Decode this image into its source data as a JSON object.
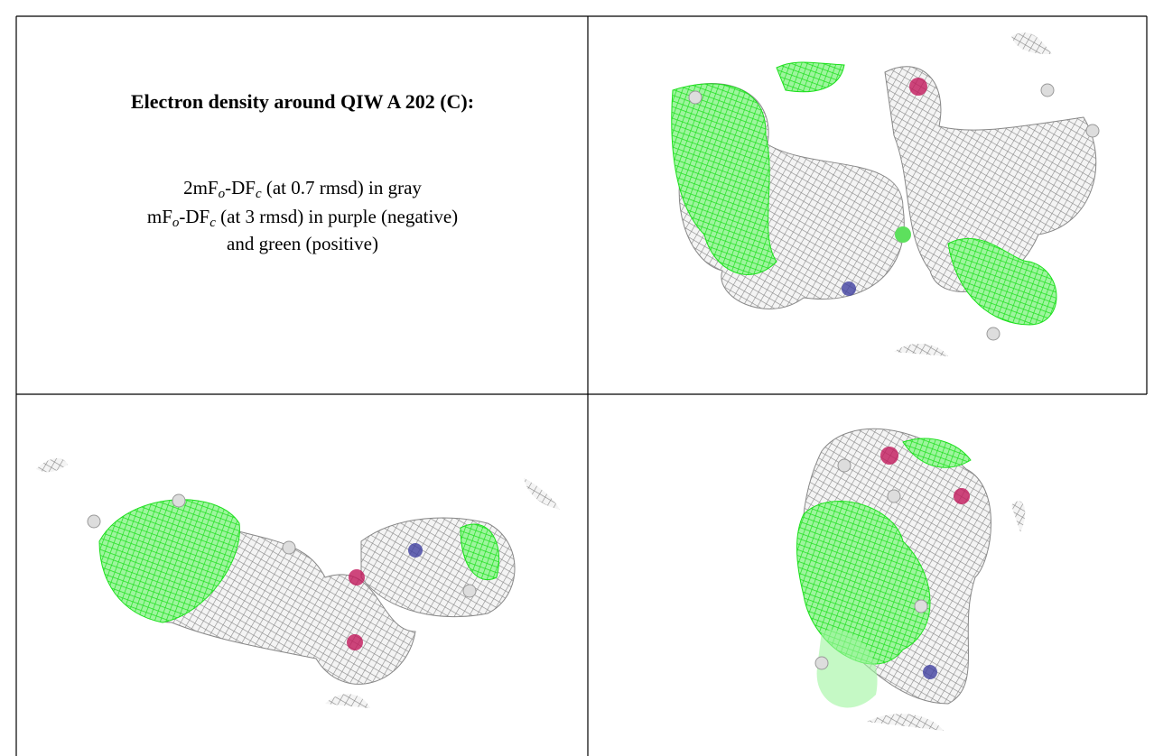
{
  "caption": {
    "title": "Electron density around QIW A 202 (C):",
    "lines": [
      [
        "2mF",
        "o",
        "-DF",
        "c",
        " (at 0.7 rmsd) in gray"
      ],
      [
        "mF",
        "o",
        "-DF",
        "c",
        " (at 3 rmsd) in purple (negative)"
      ],
      [
        "and green (positive)"
      ]
    ]
  }
}
